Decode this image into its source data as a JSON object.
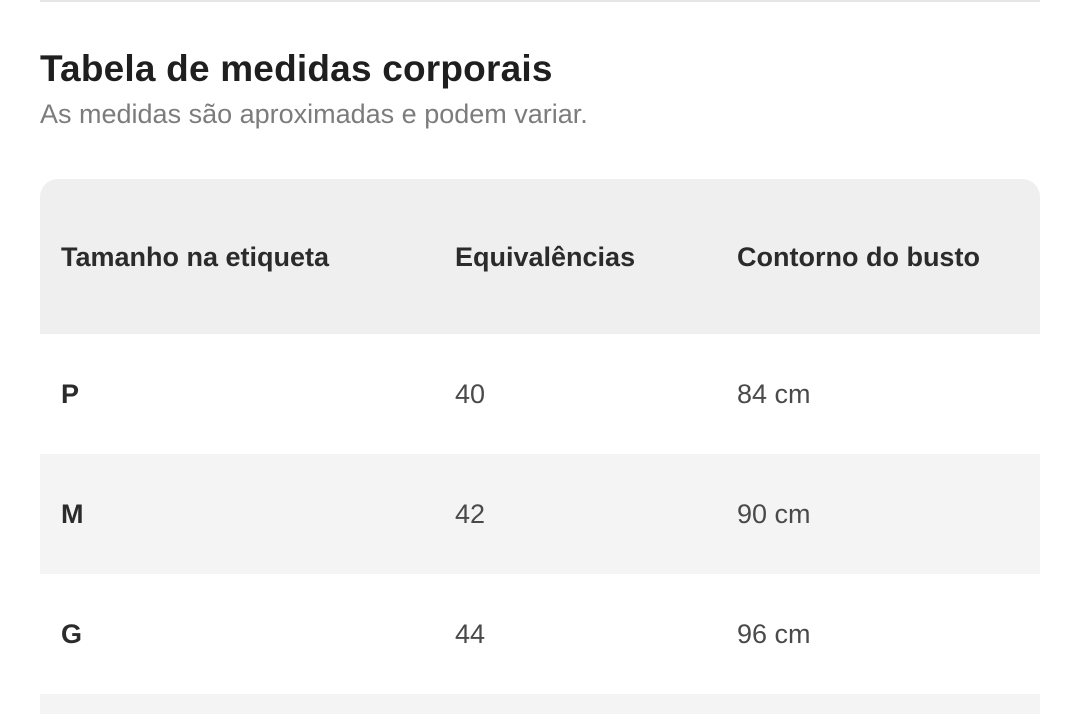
{
  "header": {
    "title": "Tabela de medidas corporais",
    "subtitle": "As medidas são aproximadas e podem variar."
  },
  "table": {
    "columns": [
      "Tamanho na etiqueta",
      "Equivalências",
      "Contorno do busto"
    ],
    "rows": [
      {
        "size": "P",
        "equivalence": "40",
        "bust": "84 cm"
      },
      {
        "size": "M",
        "equivalence": "42",
        "bust": "90 cm"
      },
      {
        "size": "G",
        "equivalence": "44",
        "bust": "96 cm"
      }
    ]
  },
  "colors": {
    "header_bg": "#efefef",
    "alt_row_bg": "#f4f4f4",
    "title_text": "#1f1f1f",
    "subtitle_text": "#7c7c7c"
  }
}
